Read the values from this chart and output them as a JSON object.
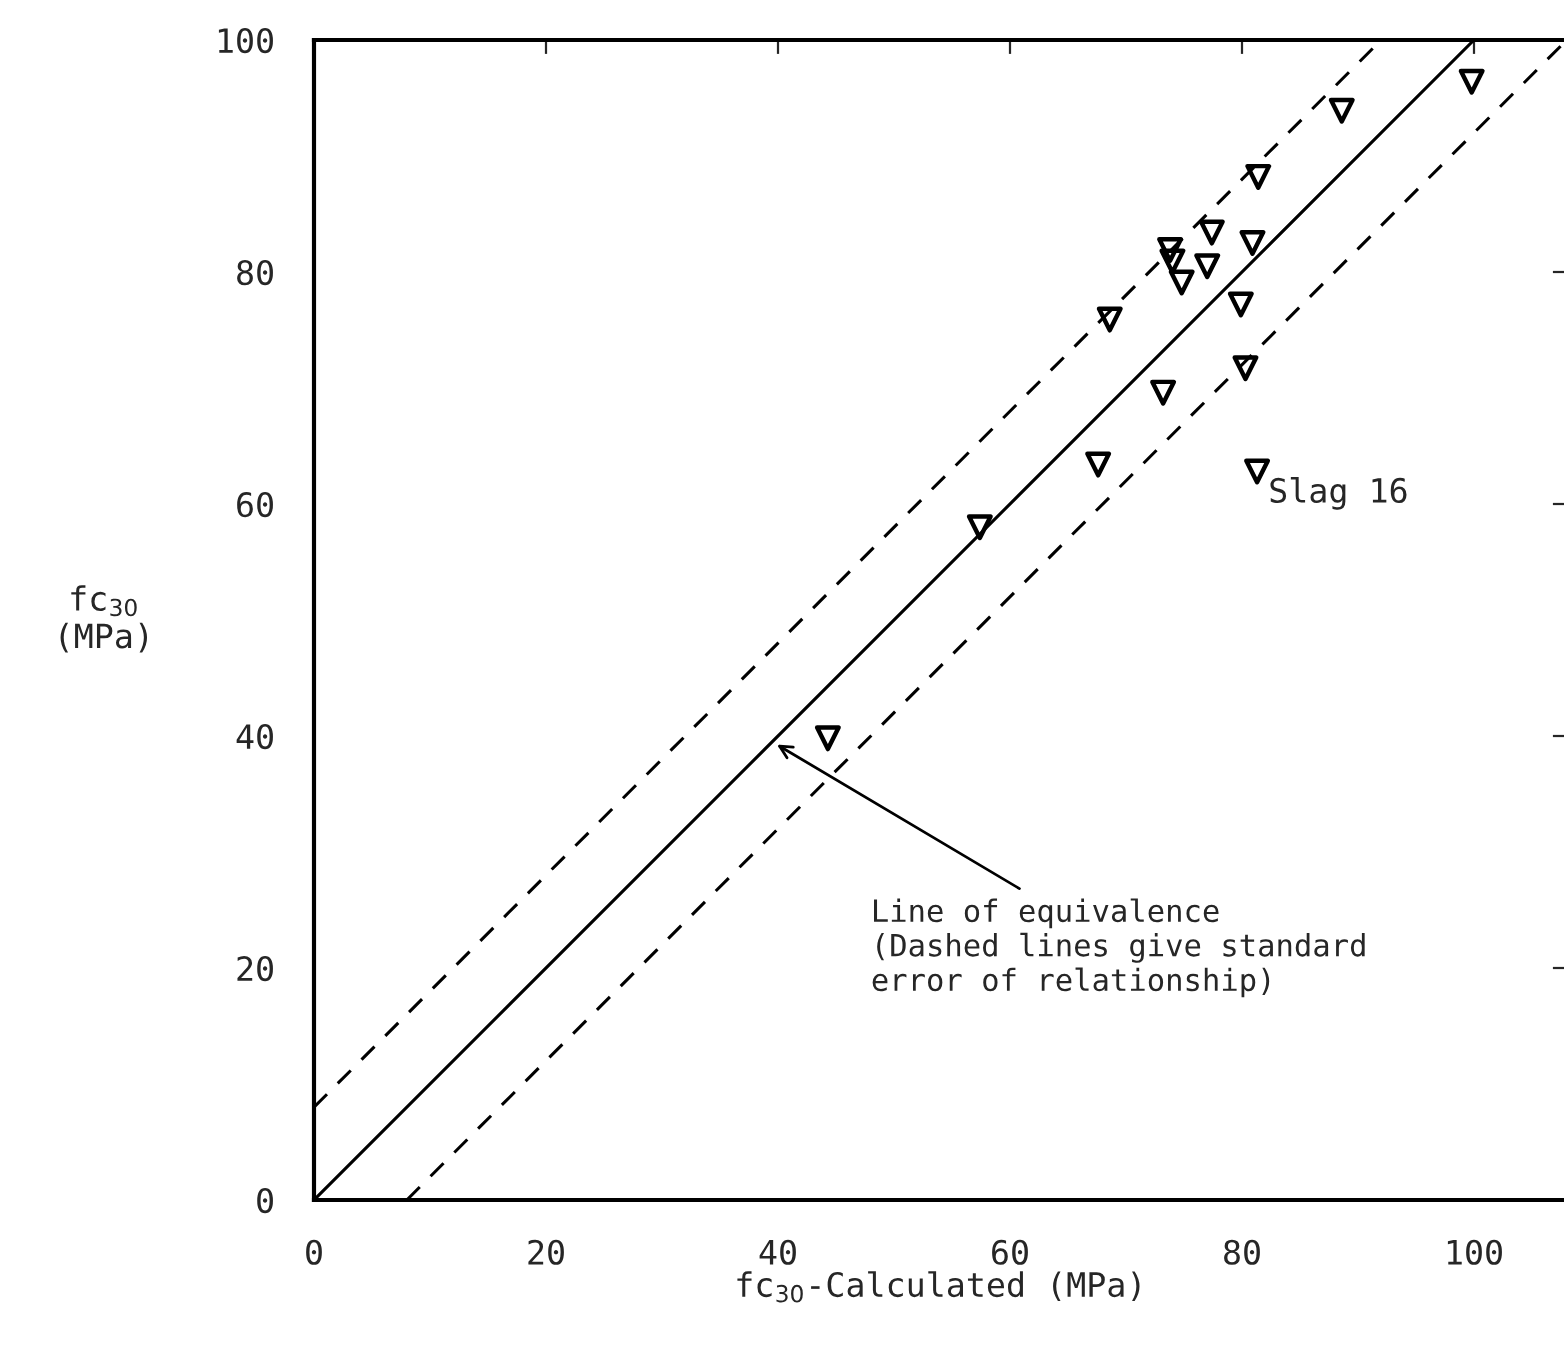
{
  "chart_data": {
    "type": "scatter",
    "xlabel": "fc$_{30}$-Calculated (MPa)",
    "ylabel": "fc$_{30}$\n(MPa)",
    "xlim": [
      0,
      108
    ],
    "ylim": [
      0,
      100
    ],
    "xticks": [
      0,
      20,
      40,
      60,
      80,
      100
    ],
    "yticks": [
      0,
      20,
      40,
      60,
      80,
      100
    ],
    "grid": false,
    "series": [
      {
        "color": "#000000",
        "marker": "triangle",
        "x": [
          44.3,
          57.4,
          67.6,
          73.2,
          68.6,
          73.8,
          74.0,
          74.8,
          77.0,
          77.4,
          80.9,
          79.9,
          80.3,
          81.3,
          81.4,
          88.6,
          99.8
        ],
        "values": [
          39.8,
          58.0,
          63.4,
          69.6,
          75.9,
          81.9,
          80.9,
          79.1,
          80.5,
          83.4,
          82.5,
          77.2,
          71.7,
          62.8,
          88.2,
          93.9,
          96.4
        ]
      },
      {
        "type": "line",
        "color": "#000000",
        "line_style": "solid",
        "marker": "none",
        "x": [
          0,
          100
        ],
        "values": [
          0,
          100
        ]
      },
      {
        "type": "line",
        "color": "#000000",
        "line_style": "dashed",
        "marker": "none",
        "x": [
          0,
          92
        ],
        "values": [
          8,
          100
        ]
      },
      {
        "type": "line",
        "color": "#000000",
        "line_style": "dashed",
        "marker": "none",
        "x": [
          8,
          108
        ],
        "values": [
          0,
          100
        ]
      }
    ],
    "annotations": [
      {
        "text": "Slag 16",
        "x": 81.3,
        "y": 62.8
      },
      {
        "text": "Line of equivalence\n(Dashed lines give standard\nerror of relationship)",
        "x": 39.5,
        "y": 39.5
      }
    ]
  }
}
